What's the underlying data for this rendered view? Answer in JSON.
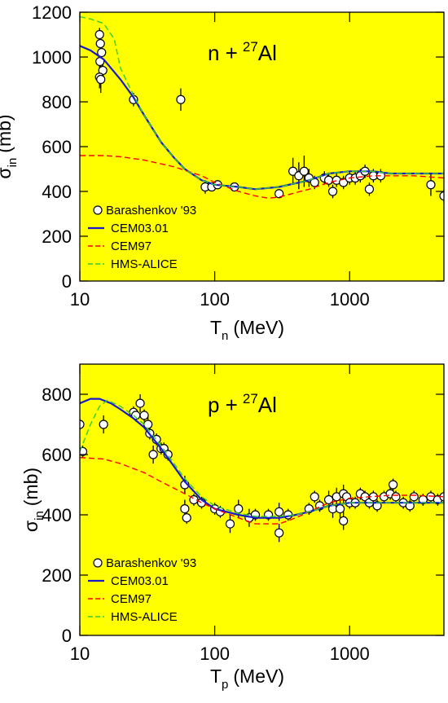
{
  "chart_data": [
    {
      "type": "line",
      "annotation": {
        "pre": "n +",
        "sup": "27",
        "post": "Al"
      },
      "x_label": {
        "main": "T",
        "sub": "n",
        "unit": "(MeV)"
      },
      "y_label": {
        "main": "σ",
        "sub": "in",
        "unit": "(mb)"
      },
      "xlim": [
        10,
        5000
      ],
      "xticks": [
        10,
        100,
        1000
      ],
      "log_x": true,
      "ylim": [
        0,
        1200
      ],
      "yticks": [
        0,
        200,
        400,
        600,
        800,
        1000,
        1200
      ],
      "background": "#ffff00",
      "legend": "lower left",
      "series": [
        {
          "name": "Barashenkov '93",
          "style": "markers",
          "color": "#000000",
          "x": [
            14,
            14.2,
            14.5,
            14.1,
            14.8,
            14,
            14.3,
            25,
            56,
            85,
            95,
            105,
            140,
            300,
            380,
            420,
            460,
            500,
            550,
            650,
            700,
            750,
            800,
            900,
            1000,
            1100,
            1200,
            1300,
            1400,
            1500,
            1700,
            4000,
            5000
          ],
          "values": [
            1100,
            1060,
            1020,
            980,
            940,
            910,
            900,
            810,
            810,
            420,
            420,
            430,
            420,
            390,
            490,
            470,
            490,
            460,
            440,
            460,
            450,
            400,
            450,
            440,
            460,
            460,
            470,
            490,
            410,
            470,
            470,
            430,
            380
          ],
          "errors": [
            30,
            30,
            40,
            40,
            40,
            50,
            60,
            30,
            50,
            30,
            20,
            20,
            20,
            20,
            60,
            60,
            70,
            40,
            30,
            30,
            30,
            30,
            30,
            30,
            30,
            30,
            30,
            30,
            30,
            30,
            30,
            50,
            30
          ]
        },
        {
          "name": "CEM03.01",
          "style": "solid",
          "color": "#1a1acc",
          "x": [
            10,
            12,
            15,
            20,
            25,
            30,
            40,
            50,
            60,
            80,
            100,
            150,
            200,
            300,
            500,
            700,
            1000,
            1500,
            2000,
            3000,
            5000
          ],
          "values": [
            1050,
            1030,
            990,
            900,
            820,
            740,
            620,
            550,
            500,
            450,
            430,
            420,
            410,
            420,
            450,
            480,
            490,
            490,
            480,
            480,
            480
          ]
        },
        {
          "name": "CEM97",
          "style": "dashed",
          "color": "#ff0000",
          "x": [
            10,
            15,
            20,
            30,
            50,
            80,
            100,
            150,
            200,
            250,
            300,
            500,
            700,
            1000,
            1500,
            2000,
            3000,
            5000
          ],
          "values": [
            560,
            560,
            555,
            540,
            510,
            470,
            440,
            400,
            380,
            370,
            375,
            410,
            440,
            460,
            470,
            470,
            470,
            460
          ]
        },
        {
          "name": "HMS-ALICE",
          "style": "dashed",
          "color": "#33cc33",
          "x": [
            10,
            12,
            15,
            18,
            20,
            25,
            30,
            40,
            50,
            60,
            80,
            100,
            150,
            200,
            300,
            500,
            700,
            1000,
            1500,
            2000,
            3000,
            5000
          ],
          "values": [
            1180,
            1170,
            1150,
            1080,
            950,
            830,
            740,
            620,
            550,
            500,
            450,
            430,
            420,
            410,
            420,
            450,
            480,
            490,
            490,
            480,
            480,
            480
          ]
        }
      ]
    },
    {
      "type": "line",
      "annotation": {
        "pre": "p +",
        "sup": "27",
        "post": "Al"
      },
      "x_label": {
        "main": "T",
        "sub": "p",
        "unit": "(MeV)"
      },
      "y_label": {
        "main": "σ",
        "sub": "in",
        "unit": "(mb)"
      },
      "xlim": [
        10,
        5000
      ],
      "xticks": [
        10,
        100,
        1000
      ],
      "log_x": true,
      "ylim": [
        0,
        900
      ],
      "yticks": [
        0,
        200,
        400,
        600,
        800
      ],
      "background": "#ffff00",
      "legend": "lower left",
      "series": [
        {
          "name": "Barashenkov '93",
          "style": "markers",
          "color": "#000000",
          "x": [
            10,
            10.5,
            15,
            25,
            26,
            28,
            30,
            32,
            33,
            35,
            37,
            40,
            42,
            45,
            60,
            60,
            62,
            70,
            80,
            100,
            110,
            130,
            150,
            180,
            200,
            250,
            300,
            300,
            350,
            500,
            550,
            600,
            700,
            750,
            800,
            850,
            900,
            900,
            950,
            1000,
            1100,
            1200,
            1300,
            1400,
            1500,
            1600,
            1800,
            2000,
            2100,
            2200,
            2500,
            2800,
            3000,
            3500,
            4000,
            4500,
            5000
          ],
          "values": [
            700,
            610,
            700,
            740,
            730,
            770,
            730,
            700,
            670,
            600,
            650,
            620,
            620,
            600,
            500,
            420,
            390,
            450,
            440,
            420,
            410,
            370,
            420,
            390,
            400,
            400,
            410,
            340,
            400,
            420,
            460,
            430,
            450,
            420,
            460,
            420,
            380,
            470,
            460,
            440,
            440,
            470,
            460,
            440,
            460,
            430,
            460,
            470,
            500,
            460,
            440,
            430,
            460,
            450,
            460,
            450,
            460
          ],
          "errors": [
            20,
            20,
            30,
            20,
            20,
            30,
            20,
            30,
            20,
            30,
            20,
            20,
            20,
            20,
            30,
            30,
            20,
            20,
            20,
            20,
            20,
            30,
            30,
            30,
            20,
            20,
            30,
            30,
            20,
            20,
            20,
            20,
            30,
            30,
            30,
            30,
            30,
            30,
            20,
            20,
            20,
            20,
            20,
            20,
            20,
            20,
            20,
            20,
            20,
            20,
            20,
            20,
            20,
            20,
            20,
            20,
            20
          ]
        },
        {
          "name": "CEM03.01",
          "style": "solid",
          "color": "#1a1acc",
          "x": [
            10,
            12,
            14,
            17,
            20,
            25,
            30,
            40,
            50,
            60,
            80,
            100,
            150,
            200,
            300,
            400,
            500,
            700,
            1000,
            2000,
            3000,
            5000
          ],
          "values": [
            770,
            785,
            785,
            770,
            750,
            720,
            690,
            620,
            560,
            510,
            450,
            420,
            400,
            390,
            390,
            400,
            410,
            430,
            440,
            440,
            440,
            440
          ]
        },
        {
          "name": "CEM97",
          "style": "dashed",
          "color": "#ff0000",
          "x": [
            10,
            15,
            20,
            30,
            40,
            60,
            80,
            100,
            150,
            200,
            300,
            400,
            500,
            700,
            1000,
            2000,
            3000,
            5000
          ],
          "values": [
            590,
            585,
            570,
            540,
            510,
            470,
            440,
            420,
            390,
            370,
            370,
            390,
            410,
            440,
            455,
            465,
            465,
            460
          ]
        },
        {
          "name": "HMS-ALICE",
          "style": "dashed",
          "color": "#33cc33",
          "x": [
            10,
            12,
            14,
            16,
            20,
            25,
            30,
            40,
            50,
            60,
            80,
            100,
            150,
            200,
            300,
            400,
            500,
            700,
            1000,
            2000,
            3000,
            5000
          ],
          "values": [
            610,
            700,
            760,
            780,
            760,
            730,
            700,
            630,
            570,
            520,
            460,
            430,
            405,
            395,
            395,
            400,
            410,
            430,
            440,
            440,
            440,
            440
          ]
        }
      ]
    }
  ]
}
